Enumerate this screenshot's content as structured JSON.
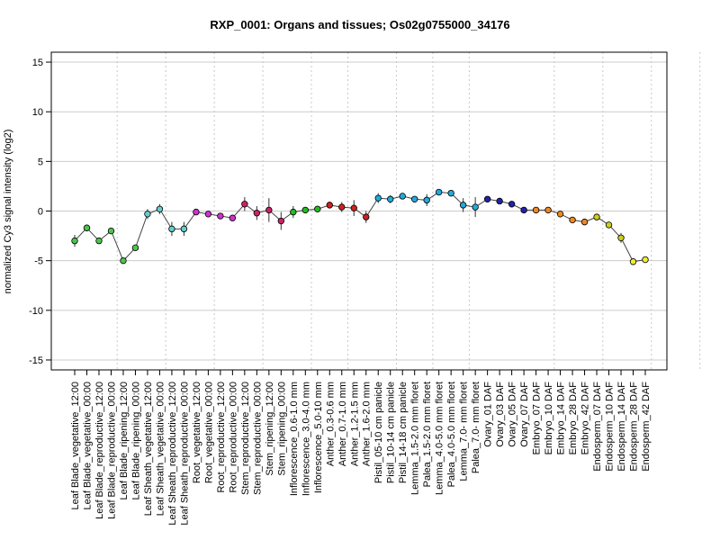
{
  "chart_data": {
    "type": "line",
    "title": "RXP_0001: Organs and tissues; Os02g0755000_34176",
    "ylabel": "normalized Cy3 signal intensity (log2)",
    "xlabel": "",
    "ylim": [
      -16,
      16
    ],
    "yticks": [
      -15,
      -10,
      -5,
      0,
      5,
      10,
      15
    ],
    "grid": "horizontal",
    "group_separators_after": [
      3,
      7,
      11,
      15,
      19,
      22,
      26,
      29,
      32,
      39,
      43,
      47,
      51
    ],
    "categories": [
      "Leaf Blade_vegetative_12:00",
      "Leaf Blade_vegetative_00:00",
      "Leaf Blade_reproductive_12:00",
      "Leaf Blade_reproductive_00:00",
      "Leaf Blade_ripening_12:00",
      "Leaf Blade_ripening_00:00",
      "Leaf Sheath_vegetative_12:00",
      "Leaf Sheath_vegetative_00:00",
      "Leaf Sheath_reproductive_12:00",
      "Leaf Sheath_reproductive_00:00",
      "Root_vegetative_12:00",
      "Root_vegetative_00:00",
      "Root_reproductive_12:00",
      "Root_reproductive_00:00",
      "Stem_reproductive_12:00",
      "Stem_reproductive_00:00",
      "Stem_ripening_12:00",
      "Stem_ripening_00:00",
      "Inflorescence_0.6-1.0 mm",
      "Inflorescence_3.0-4.0 mm",
      "Inflorescence_5.0-10 mm",
      "Anther_0.3-0.6 mm",
      "Anther_0.7-1.0 mm",
      "Anther_1.2-1.5 mm",
      "Anther_1.6-2.0 mm",
      "Pistil_05-10 cm panicle",
      "Pistil_10-14 cm panicle",
      "Pistil_14-18 cm panicle",
      "Lemma_1.5-2.0 mm floret",
      "Palea_1.5-2.0 mm floret",
      "Lemma_4.0-5.0 mm floret",
      "Palea_4.0-5.0 mm floret",
      "Lemma_7.0- mm floret",
      "Palea_7.0- mm floret",
      "Ovary_01 DAF",
      "Ovary_03 DAF",
      "Ovary_05 DAF",
      "Ovary_07 DAF",
      "Embryo_07 DAF",
      "Embryo_10 DAF",
      "Embryo_14 DAF",
      "Embryo_28 DAF",
      "Embryo_42 DAF",
      "Endosperm_07 DAF",
      "Endosperm_10 DAF",
      "Endosperm_14 DAF",
      "Endosperm_28 DAF",
      "Endosperm_42 DAF"
    ],
    "values": [
      -3.0,
      -1.7,
      -3.0,
      -2.0,
      -5.0,
      -3.7,
      -0.3,
      0.2,
      -1.8,
      -1.8,
      -0.1,
      -0.3,
      -0.5,
      -0.7,
      0.7,
      -0.2,
      0.1,
      -1.0,
      -0.1,
      0.1,
      0.2,
      0.6,
      0.4,
      0.3,
      -0.6,
      1.3,
      1.2,
      1.5,
      1.2,
      1.1,
      1.9,
      1.8,
      0.6,
      0.4,
      1.2,
      1.0,
      0.7,
      0.1,
      0.1,
      0.1,
      -0.3,
      -0.9,
      -1.1,
      -0.6,
      -1.4,
      -2.7,
      -5.1,
      -4.9
    ],
    "errors": [
      0.6,
      0.3,
      0.3,
      0.3,
      0.3,
      0.3,
      0.5,
      0.5,
      0.7,
      0.7,
      0.2,
      0.3,
      0.2,
      0.2,
      0.7,
      0.7,
      1.2,
      0.9,
      0.6,
      0.3,
      0.3,
      0.3,
      0.5,
      0.8,
      0.6,
      0.5,
      0.4,
      0.3,
      0.3,
      0.6,
      0.2,
      0.2,
      0.7,
      1.0,
      0.3,
      0.3,
      0.3,
      0.3,
      0.2,
      0.3,
      0.3,
      0.2,
      0.3,
      0.3,
      0.3,
      0.5,
      0.3,
      0.3
    ],
    "colors": [
      "#4ec44e",
      "#4ec44e",
      "#4ec44e",
      "#4ec44e",
      "#4ec44e",
      "#4ec44e",
      "#66cdcd",
      "#66cdcd",
      "#66cdcd",
      "#66cdcd",
      "#cc33cc",
      "#cc33cc",
      "#cc33cc",
      "#cc33cc",
      "#cc2266",
      "#cc2266",
      "#cc2266",
      "#cc2266",
      "#22bb22",
      "#22bb22",
      "#22bb22",
      "#cc2222",
      "#cc2222",
      "#cc2222",
      "#cc2222",
      "#22aadd",
      "#22aadd",
      "#22aadd",
      "#22aadd",
      "#22aadd",
      "#22aadd",
      "#22aadd",
      "#22aadd",
      "#22aadd",
      "#2222aa",
      "#2222aa",
      "#2222aa",
      "#2222aa",
      "#ee8822",
      "#ee8822",
      "#ee8822",
      "#ee8822",
      "#ee8822",
      "#cccc22",
      "#cccc22",
      "#cccc22",
      "#eeee33",
      "#eeee33"
    ]
  }
}
